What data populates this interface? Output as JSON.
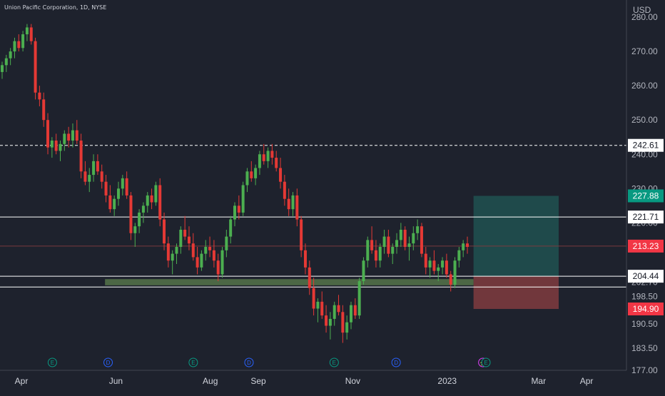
{
  "header": {
    "symbol_line": "Union Pacific Corporation, 1D, NYSE"
  },
  "colors": {
    "background": "#1e222d",
    "up": "#4caf50",
    "down": "#e53935",
    "grid_text": "#b2b5be",
    "line": "#ffffff",
    "zone": "#5c7f4e",
    "target_zone": "#1f4f4f",
    "stop_zone": "#7a3a3e",
    "badge_green": "#089981",
    "badge_red": "#f23645"
  },
  "chart_data": {
    "type": "candlestick",
    "currency": "USD",
    "ylim": [
      177.0,
      285.0
    ],
    "y_ticks": [
      "280.00",
      "270.00",
      "260.00",
      "250.00",
      "240.00",
      "230.00",
      "220.00",
      "213.23",
      "202.70",
      "198.50",
      "190.50",
      "183.50",
      "177.00"
    ],
    "x_ticks": [
      {
        "label": "Apr",
        "date": "2022-04-01"
      },
      {
        "label": "Jun",
        "date": "2022-06-01"
      },
      {
        "label": "Aug",
        "date": "2022-08-01"
      },
      {
        "label": "Sep",
        "date": "2022-09-01"
      },
      {
        "label": "Nov",
        "date": "2022-11-01"
      },
      {
        "label": "2023",
        "date": "2023-01-01"
      },
      {
        "label": "Mar",
        "date": "2023-03-01"
      },
      {
        "label": "Apr",
        "date": "2023-04-01"
      }
    ],
    "price_labels": [
      {
        "label": "242.61",
        "value": 242.61,
        "style": "dark"
      },
      {
        "label": "227.88",
        "value": 227.88,
        "style": "green"
      },
      {
        "label": "221.71",
        "value": 221.71,
        "style": "dark"
      },
      {
        "label": "213.23",
        "value": 213.23,
        "style": "red"
      },
      {
        "label": "204.44",
        "value": 204.44,
        "style": "dark"
      },
      {
        "label": "194.90",
        "value": 194.9,
        "style": "red"
      }
    ],
    "horizontal_lines": [
      {
        "value": 242.61,
        "style": "dashed"
      },
      {
        "value": 221.71,
        "style": "solid"
      },
      {
        "value": 213.23,
        "style": "faint"
      },
      {
        "value": 204.44,
        "style": "solid"
      },
      {
        "value": 201.3,
        "style": "solid"
      }
    ],
    "support_zone": {
      "from_date": "2022-05-25",
      "to_date": "2023-01-18",
      "low": 201.8,
      "high": 203.6
    },
    "position": {
      "from_date": "2023-01-18",
      "to_date": "2023-03-14",
      "entry": 204.44,
      "target": 227.88,
      "stop": 194.9
    },
    "candles": [
      [
        264,
        267,
        262,
        266
      ],
      [
        266,
        269,
        264,
        268
      ],
      [
        268,
        271,
        266,
        270
      ],
      [
        270,
        274,
        268,
        273
      ],
      [
        273,
        275,
        270,
        271
      ],
      [
        271,
        276,
        270,
        275
      ],
      [
        275,
        278,
        273,
        277
      ],
      [
        277,
        278,
        272,
        273
      ],
      [
        273,
        274,
        256,
        258
      ],
      [
        258,
        260,
        254,
        256
      ],
      [
        256,
        258,
        248,
        250
      ],
      [
        250,
        252,
        240,
        242
      ],
      [
        242,
        245,
        239,
        244
      ],
      [
        244,
        246,
        240,
        241
      ],
      [
        241,
        244,
        238,
        243
      ],
      [
        243,
        247,
        241,
        246
      ],
      [
        246,
        248,
        242,
        244
      ],
      [
        244,
        249,
        242,
        247
      ],
      [
        247,
        250,
        243,
        244
      ],
      [
        244,
        246,
        233,
        235
      ],
      [
        235,
        238,
        231,
        232
      ],
      [
        232,
        236,
        229,
        234
      ],
      [
        234,
        240,
        232,
        238
      ],
      [
        238,
        240,
        234,
        235
      ],
      [
        235,
        237,
        230,
        232
      ],
      [
        232,
        234,
        226,
        228
      ],
      [
        228,
        231,
        223,
        224
      ],
      [
        224,
        228,
        222,
        227
      ],
      [
        227,
        232,
        225,
        230
      ],
      [
        230,
        234,
        228,
        233
      ],
      [
        233,
        235,
        227,
        228
      ],
      [
        228,
        229,
        215,
        217
      ],
      [
        217,
        220,
        213,
        219
      ],
      [
        219,
        224,
        217,
        223
      ],
      [
        223,
        226,
        220,
        225
      ],
      [
        225,
        229,
        223,
        228
      ],
      [
        228,
        230,
        224,
        226
      ],
      [
        226,
        232,
        225,
        231
      ],
      [
        231,
        233,
        219,
        221
      ],
      [
        221,
        223,
        212,
        214
      ],
      [
        214,
        216,
        207,
        209
      ],
      [
        209,
        212,
        205,
        211
      ],
      [
        211,
        214,
        208,
        213
      ],
      [
        213,
        219,
        211,
        218
      ],
      [
        218,
        222,
        215,
        216
      ],
      [
        216,
        219,
        212,
        214
      ],
      [
        214,
        217,
        209,
        210
      ],
      [
        210,
        213,
        205,
        207
      ],
      [
        207,
        212,
        206,
        211
      ],
      [
        211,
        215,
        209,
        213
      ],
      [
        213,
        216,
        210,
        212
      ],
      [
        212,
        215,
        207,
        209
      ],
      [
        209,
        211,
        203,
        205
      ],
      [
        205,
        213,
        204,
        212
      ],
      [
        212,
        218,
        210,
        216
      ],
      [
        216,
        222,
        214,
        221
      ],
      [
        221,
        226,
        219,
        225
      ],
      [
        225,
        228,
        221,
        223
      ],
      [
        223,
        232,
        222,
        231
      ],
      [
        231,
        236,
        229,
        235
      ],
      [
        235,
        238,
        232,
        233
      ],
      [
        233,
        237,
        231,
        236
      ],
      [
        236,
        241,
        234,
        240
      ],
      [
        240,
        243,
        237,
        238
      ],
      [
        238,
        242,
        236,
        241
      ],
      [
        241,
        243,
        237,
        239
      ],
      [
        239,
        241,
        235,
        236
      ],
      [
        236,
        239,
        230,
        232
      ],
      [
        232,
        234,
        225,
        227
      ],
      [
        227,
        230,
        222,
        224
      ],
      [
        224,
        229,
        222,
        228
      ],
      [
        228,
        230,
        219,
        221
      ],
      [
        221,
        222,
        210,
        212
      ],
      [
        212,
        214,
        205,
        207
      ],
      [
        207,
        209,
        199,
        201
      ],
      [
        201,
        204,
        193,
        195
      ],
      [
        195,
        198,
        191,
        197
      ],
      [
        197,
        200,
        192,
        193
      ],
      [
        193,
        196,
        188,
        190
      ],
      [
        190,
        194,
        186,
        192
      ],
      [
        192,
        197,
        190,
        196
      ],
      [
        196,
        199,
        193,
        194
      ],
      [
        194,
        196,
        185,
        188
      ],
      [
        188,
        193,
        186,
        191
      ],
      [
        191,
        197,
        189,
        196
      ],
      [
        196,
        198,
        192,
        193
      ],
      [
        193,
        204,
        192,
        203
      ],
      [
        203,
        210,
        202,
        209
      ],
      [
        209,
        216,
        207,
        215
      ],
      [
        215,
        219,
        211,
        212
      ],
      [
        212,
        215,
        207,
        209
      ],
      [
        209,
        214,
        207,
        213
      ],
      [
        213,
        218,
        211,
        216
      ],
      [
        216,
        218,
        210,
        211
      ],
      [
        211,
        214,
        208,
        213
      ],
      [
        213,
        217,
        211,
        215
      ],
      [
        215,
        220,
        213,
        218
      ],
      [
        218,
        219,
        212,
        213
      ],
      [
        213,
        216,
        209,
        214
      ],
      [
        214,
        219,
        212,
        217
      ],
      [
        217,
        221,
        215,
        219
      ],
      [
        219,
        220,
        210,
        211
      ],
      [
        211,
        213,
        205,
        207
      ],
      [
        207,
        210,
        204,
        209
      ],
      [
        209,
        212,
        205,
        206
      ],
      [
        206,
        208,
        203,
        207
      ],
      [
        207,
        210,
        205,
        209
      ],
      [
        209,
        211,
        204,
        205
      ],
      [
        205,
        206,
        200,
        202
      ],
      [
        202,
        210,
        201,
        209
      ],
      [
        209,
        213,
        207,
        212
      ],
      [
        212,
        215,
        210,
        214
      ],
      [
        214,
        216,
        211,
        213
      ]
    ],
    "markers": [
      {
        "label": "E",
        "date": "2022-04-21"
      },
      {
        "label": "D",
        "date": "2022-05-27"
      },
      {
        "label": "E",
        "date": "2022-07-21"
      },
      {
        "label": "D",
        "date": "2022-08-26"
      },
      {
        "label": "E",
        "date": "2022-10-20"
      },
      {
        "label": "D",
        "date": "2022-11-29"
      },
      {
        "label": "⚡",
        "date": "2023-01-24"
      },
      {
        "label": "E",
        "date": "2023-01-26"
      }
    ]
  }
}
